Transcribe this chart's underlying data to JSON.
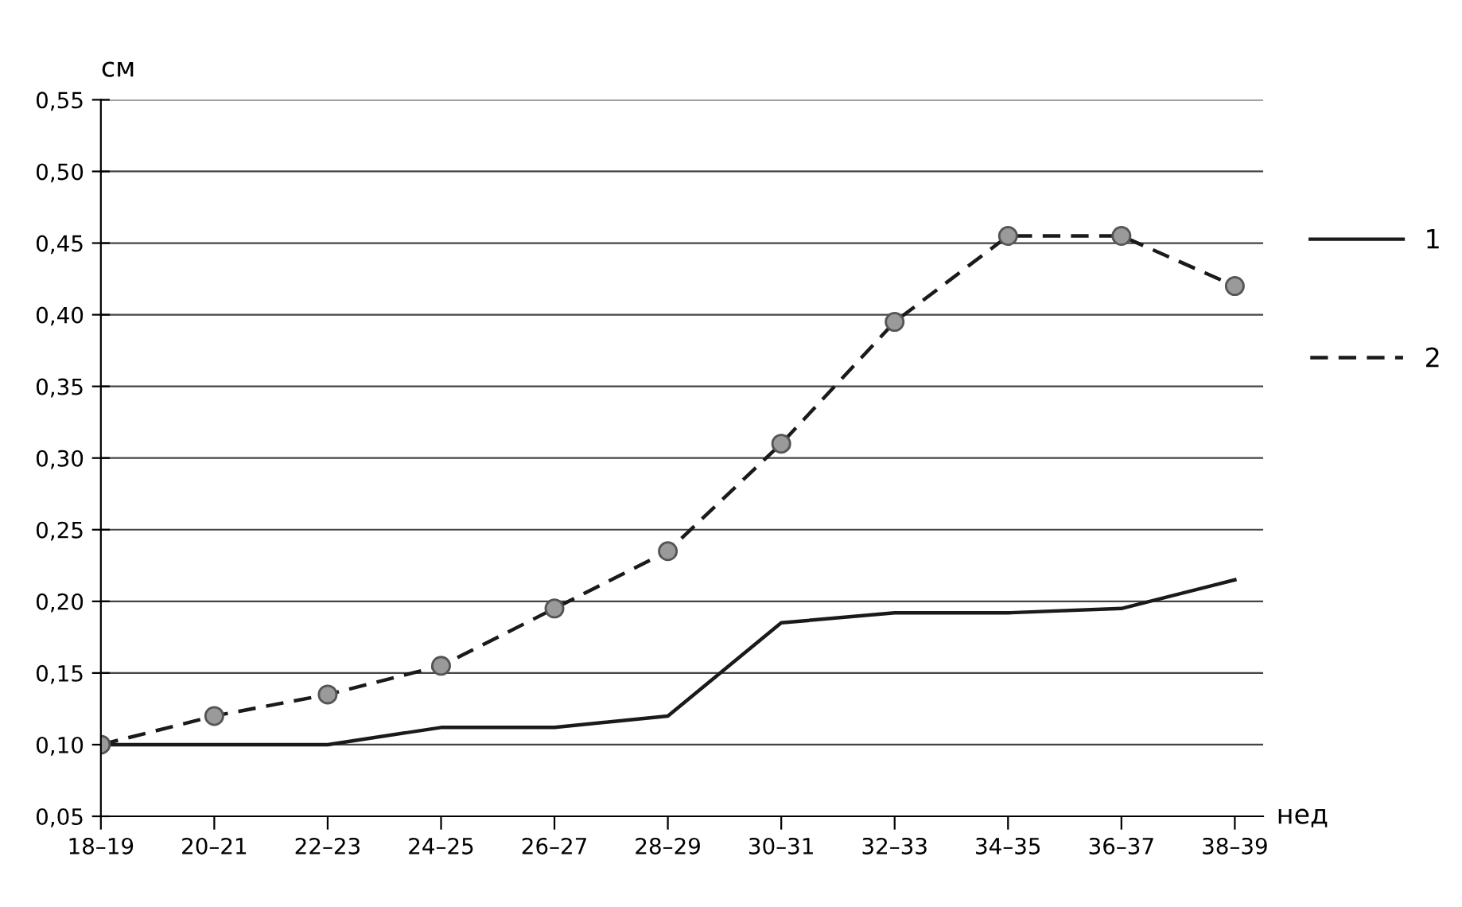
{
  "chart_data": {
    "type": "line",
    "categories": [
      "18–19",
      "20–21",
      "22–23",
      "24–25",
      "26–27",
      "28–29",
      "30–31",
      "32–33",
      "34–35",
      "36–37",
      "38–39"
    ],
    "series": [
      {
        "name": "1",
        "color": "#1a1a1a",
        "line_style": "solid",
        "marker": "none",
        "values": [
          0.1,
          0.1,
          0.1,
          0.112,
          0.112,
          0.12,
          0.185,
          0.192,
          0.192,
          0.195,
          0.215
        ]
      },
      {
        "name": "2",
        "color": "#1a1a1a",
        "line_style": "dashed",
        "marker": "circle",
        "values": [
          0.1,
          0.12,
          0.135,
          0.155,
          0.195,
          0.235,
          0.31,
          0.395,
          0.455,
          0.455,
          0.42
        ]
      }
    ],
    "xlabel": "нед",
    "ylabel": "см",
    "ylim": [
      0.05,
      0.55
    ],
    "yticks": [
      {
        "value": 0.05,
        "label": "0,05"
      },
      {
        "value": 0.1,
        "label": "0,10"
      },
      {
        "value": 0.15,
        "label": "0,15"
      },
      {
        "value": 0.2,
        "label": "0,20"
      },
      {
        "value": 0.25,
        "label": "0,25"
      },
      {
        "value": 0.3,
        "label": "0,30"
      },
      {
        "value": 0.35,
        "label": "0,35"
      },
      {
        "value": 0.4,
        "label": "0,40"
      },
      {
        "value": 0.45,
        "label": "0,45"
      },
      {
        "value": 0.5,
        "label": "0,50"
      },
      {
        "value": 0.55,
        "label": "0,55"
      }
    ],
    "grid": "y",
    "legend": "right"
  }
}
